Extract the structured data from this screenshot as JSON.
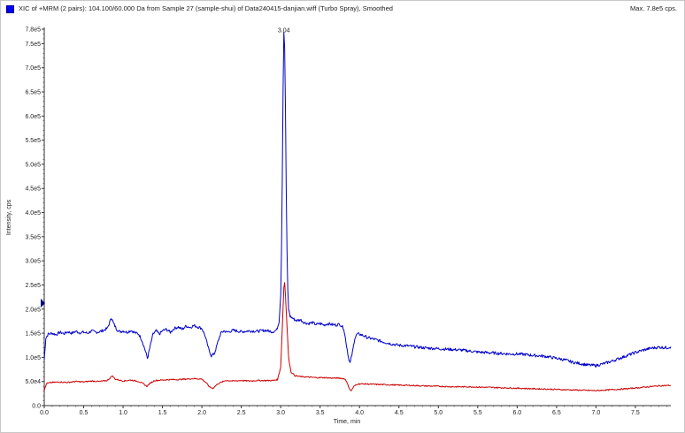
{
  "window": {
    "title": "XIC of +MRM (2 pairs): 104.100/60.000 Da  from Sample 27 (sample-shui) of Data240415-danjian.wiff (Turbo Spray), Smoothed",
    "max_label": "Max. 7.8e5 cps."
  },
  "colors": {
    "series1": "#0000cc",
    "series2": "#cc0000",
    "axis": "#333333",
    "legend_swatch": "#0000ff"
  },
  "chart_data": {
    "type": "line",
    "xlabel": "Time, min",
    "ylabel": "Intensity, cps",
    "xlim": [
      0.0,
      7.95
    ],
    "ylim": [
      0,
      780000
    ],
    "grid": false,
    "x_ticks": [
      {
        "v": 0.0,
        "label": "0.0"
      },
      {
        "v": 0.5,
        "label": "0.5"
      },
      {
        "v": 1.0,
        "label": "1.0"
      },
      {
        "v": 1.5,
        "label": "1.5"
      },
      {
        "v": 2.0,
        "label": "2.0"
      },
      {
        "v": 2.5,
        "label": "2.5"
      },
      {
        "v": 3.0,
        "label": "3.0"
      },
      {
        "v": 3.5,
        "label": "3.5"
      },
      {
        "v": 4.0,
        "label": "4.0"
      },
      {
        "v": 4.5,
        "label": "4.5"
      },
      {
        "v": 5.0,
        "label": "5.0"
      },
      {
        "v": 5.5,
        "label": "5.5"
      },
      {
        "v": 6.0,
        "label": "6.0"
      },
      {
        "v": 6.5,
        "label": "6.5"
      },
      {
        "v": 7.0,
        "label": "7.0"
      },
      {
        "v": 7.5,
        "label": "7.5"
      }
    ],
    "y_ticks": [
      {
        "v": 0,
        "label": "0.0"
      },
      {
        "v": 50000,
        "label": "5.0e4"
      },
      {
        "v": 100000,
        "label": "1.0e5"
      },
      {
        "v": 150000,
        "label": "1.5e5"
      },
      {
        "v": 200000,
        "label": "2.0e5"
      },
      {
        "v": 250000,
        "label": "2.5e5"
      },
      {
        "v": 300000,
        "label": "3.0e5"
      },
      {
        "v": 350000,
        "label": "3.5e5"
      },
      {
        "v": 400000,
        "label": "4.0e5"
      },
      {
        "v": 450000,
        "label": "4.5e5"
      },
      {
        "v": 500000,
        "label": "5.0e5"
      },
      {
        "v": 550000,
        "label": "5.5e5"
      },
      {
        "v": 600000,
        "label": "6.0e5"
      },
      {
        "v": 650000,
        "label": "6.5e5"
      },
      {
        "v": 700000,
        "label": "7.0e5"
      },
      {
        "v": 750000,
        "label": "7.5e5"
      },
      {
        "v": 780000,
        "label": "7.8e5"
      }
    ],
    "annotations": [
      {
        "x": 3.04,
        "y": 770000,
        "text": "3.04"
      }
    ],
    "series": [
      {
        "color": "#0000cc",
        "points": [
          [
            0.0,
            95000
          ],
          [
            0.02,
            140000
          ],
          [
            0.05,
            148000
          ],
          [
            0.1,
            150000
          ],
          [
            0.15,
            147000
          ],
          [
            0.2,
            152000
          ],
          [
            0.25,
            149000
          ],
          [
            0.3,
            153000
          ],
          [
            0.35,
            150000
          ],
          [
            0.4,
            154000
          ],
          [
            0.45,
            151000
          ],
          [
            0.5,
            152000
          ],
          [
            0.55,
            150000
          ],
          [
            0.6,
            155000
          ],
          [
            0.65,
            152000
          ],
          [
            0.7,
            153000
          ],
          [
            0.75,
            156000
          ],
          [
            0.8,
            160000
          ],
          [
            0.83,
            172000
          ],
          [
            0.85,
            183000
          ],
          [
            0.88,
            170000
          ],
          [
            0.92,
            158000
          ],
          [
            0.96,
            153000
          ],
          [
            1.0,
            155000
          ],
          [
            1.05,
            152000
          ],
          [
            1.1,
            156000
          ],
          [
            1.15,
            151000
          ],
          [
            1.2,
            148000
          ],
          [
            1.24,
            135000
          ],
          [
            1.28,
            115000
          ],
          [
            1.31,
            98000
          ],
          [
            1.34,
            120000
          ],
          [
            1.38,
            148000
          ],
          [
            1.42,
            155000
          ],
          [
            1.46,
            148000
          ],
          [
            1.5,
            155000
          ],
          [
            1.55,
            158000
          ],
          [
            1.6,
            152000
          ],
          [
            1.65,
            160000
          ],
          [
            1.7,
            163000
          ],
          [
            1.75,
            158000
          ],
          [
            1.8,
            165000
          ],
          [
            1.85,
            162000
          ],
          [
            1.9,
            166000
          ],
          [
            1.95,
            163000
          ],
          [
            2.0,
            160000
          ],
          [
            2.04,
            145000
          ],
          [
            2.08,
            120000
          ],
          [
            2.12,
            103000
          ],
          [
            2.16,
            108000
          ],
          [
            2.2,
            130000
          ],
          [
            2.24,
            150000
          ],
          [
            2.28,
            155000
          ],
          [
            2.32,
            152000
          ],
          [
            2.4,
            156000
          ],
          [
            2.5,
            153000
          ],
          [
            2.6,
            155000
          ],
          [
            2.7,
            154000
          ],
          [
            2.8,
            156000
          ],
          [
            2.9,
            153000
          ],
          [
            2.95,
            157000
          ],
          [
            2.98,
            175000
          ],
          [
            3.0,
            230000
          ],
          [
            3.01,
            320000
          ],
          [
            3.02,
            470000
          ],
          [
            3.03,
            650000
          ],
          [
            3.04,
            775000
          ],
          [
            3.05,
            740000
          ],
          [
            3.06,
            620000
          ],
          [
            3.07,
            450000
          ],
          [
            3.08,
            320000
          ],
          [
            3.09,
            240000
          ],
          [
            3.1,
            200000
          ],
          [
            3.12,
            185000
          ],
          [
            3.16,
            180000
          ],
          [
            3.2,
            176000
          ],
          [
            3.25,
            178000
          ],
          [
            3.3,
            172000
          ],
          [
            3.35,
            170000
          ],
          [
            3.4,
            172000
          ],
          [
            3.45,
            168000
          ],
          [
            3.5,
            170000
          ],
          [
            3.55,
            167000
          ],
          [
            3.6,
            170000
          ],
          [
            3.65,
            168000
          ],
          [
            3.7,
            167000
          ],
          [
            3.75,
            169000
          ],
          [
            3.8,
            160000
          ],
          [
            3.83,
            130000
          ],
          [
            3.86,
            100000
          ],
          [
            3.88,
            88000
          ],
          [
            3.91,
            110000
          ],
          [
            3.94,
            140000
          ],
          [
            3.97,
            148000
          ],
          [
            4.0,
            148000
          ],
          [
            4.05,
            145000
          ],
          [
            4.1,
            141000
          ],
          [
            4.2,
            137000
          ],
          [
            4.3,
            132000
          ],
          [
            4.4,
            128000
          ],
          [
            4.5,
            125000
          ],
          [
            4.6,
            124000
          ],
          [
            4.7,
            122000
          ],
          [
            4.8,
            120000
          ],
          [
            4.9,
            119000
          ],
          [
            5.0,
            118000
          ],
          [
            5.1,
            117000
          ],
          [
            5.2,
            116000
          ],
          [
            5.3,
            115000
          ],
          [
            5.4,
            113000
          ],
          [
            5.5,
            111000
          ],
          [
            5.6,
            110000
          ],
          [
            5.7,
            109000
          ],
          [
            5.8,
            108000
          ],
          [
            5.9,
            107000
          ],
          [
            6.0,
            107000
          ],
          [
            6.1,
            106000
          ],
          [
            6.2,
            104000
          ],
          [
            6.3,
            103000
          ],
          [
            6.4,
            101000
          ],
          [
            6.5,
            98000
          ],
          [
            6.6,
            95000
          ],
          [
            6.7,
            90000
          ],
          [
            6.8,
            87000
          ],
          [
            6.9,
            84000
          ],
          [
            7.0,
            83000
          ],
          [
            7.1,
            87000
          ],
          [
            7.2,
            92000
          ],
          [
            7.3,
            98000
          ],
          [
            7.4,
            104000
          ],
          [
            7.5,
            110000
          ],
          [
            7.6,
            115000
          ],
          [
            7.7,
            119000
          ],
          [
            7.8,
            121000
          ],
          [
            7.9,
            120000
          ],
          [
            7.95,
            122000
          ]
        ]
      },
      {
        "color": "#cc0000",
        "points": [
          [
            0.0,
            32000
          ],
          [
            0.03,
            46000
          ],
          [
            0.1,
            48000
          ],
          [
            0.2,
            49000
          ],
          [
            0.3,
            48000
          ],
          [
            0.4,
            50000
          ],
          [
            0.5,
            49000
          ],
          [
            0.6,
            51000
          ],
          [
            0.7,
            50000
          ],
          [
            0.8,
            52000
          ],
          [
            0.84,
            58000
          ],
          [
            0.86,
            62000
          ],
          [
            0.9,
            55000
          ],
          [
            1.0,
            51000
          ],
          [
            1.1,
            53000
          ],
          [
            1.2,
            50000
          ],
          [
            1.26,
            45000
          ],
          [
            1.3,
            40000
          ],
          [
            1.34,
            46000
          ],
          [
            1.4,
            52000
          ],
          [
            1.5,
            53000
          ],
          [
            1.6,
            54000
          ],
          [
            1.7,
            54000
          ],
          [
            1.8,
            55000
          ],
          [
            1.9,
            56000
          ],
          [
            2.0,
            55000
          ],
          [
            2.05,
            48000
          ],
          [
            2.1,
            38000
          ],
          [
            2.14,
            36000
          ],
          [
            2.2,
            45000
          ],
          [
            2.3,
            52000
          ],
          [
            2.4,
            51000
          ],
          [
            2.5,
            52000
          ],
          [
            2.6,
            51000
          ],
          [
            2.7,
            52000
          ],
          [
            2.8,
            52000
          ],
          [
            2.9,
            52000
          ],
          [
            2.96,
            54000
          ],
          [
            3.0,
            80000
          ],
          [
            3.02,
            160000
          ],
          [
            3.04,
            245000
          ],
          [
            3.05,
            255000
          ],
          [
            3.06,
            230000
          ],
          [
            3.08,
            165000
          ],
          [
            3.1,
            100000
          ],
          [
            3.13,
            70000
          ],
          [
            3.18,
            62000
          ],
          [
            3.25,
            60000
          ],
          [
            3.35,
            59000
          ],
          [
            3.45,
            58000
          ],
          [
            3.55,
            58000
          ],
          [
            3.65,
            57000
          ],
          [
            3.75,
            57000
          ],
          [
            3.82,
            55000
          ],
          [
            3.86,
            40000
          ],
          [
            3.89,
            30000
          ],
          [
            3.93,
            40000
          ],
          [
            3.98,
            45000
          ],
          [
            4.05,
            45000
          ],
          [
            4.2,
            44000
          ],
          [
            4.4,
            43000
          ],
          [
            4.6,
            42000
          ],
          [
            4.8,
            41000
          ],
          [
            5.0,
            40000
          ],
          [
            5.2,
            39000
          ],
          [
            5.4,
            39000
          ],
          [
            5.6,
            38000
          ],
          [
            5.8,
            37000
          ],
          [
            6.0,
            36000
          ],
          [
            6.2,
            35000
          ],
          [
            6.4,
            34000
          ],
          [
            6.6,
            33000
          ],
          [
            6.8,
            32000
          ],
          [
            7.0,
            31000
          ],
          [
            7.2,
            33000
          ],
          [
            7.4,
            35000
          ],
          [
            7.6,
            38000
          ],
          [
            7.8,
            41000
          ],
          [
            7.95,
            42000
          ]
        ]
      }
    ]
  }
}
